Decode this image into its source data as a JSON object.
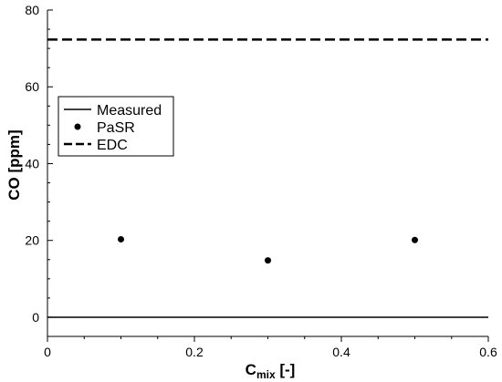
{
  "chart_data": {
    "type": "scatter",
    "xlim": [
      0,
      0.6
    ],
    "ylim": [
      -5,
      80
    ],
    "x_ticks": [
      0,
      0.2,
      0.4,
      0.6
    ],
    "x_tick_labels": [
      "0",
      "0.2",
      "0.4",
      "0.6"
    ],
    "y_ticks": [
      0,
      20,
      40,
      60,
      80
    ],
    "y_tick_labels": [
      "0",
      "20",
      "40",
      "60",
      "80"
    ],
    "xlabel": {
      "main": "C",
      "sub": "mix",
      "suffix": " [-]"
    },
    "ylabel": "CO [ppm]",
    "grid": false,
    "legend_position": "upper-left",
    "series": [
      {
        "name": "Measured",
        "style": "solid-line",
        "color": "#000000",
        "x": [
          0,
          0.6
        ],
        "y": [
          0,
          0
        ]
      },
      {
        "name": "PaSR",
        "style": "markers",
        "color": "#000000",
        "x": [
          0.1,
          0.3,
          0.5
        ],
        "y": [
          20.3,
          14.8,
          20.1
        ]
      },
      {
        "name": "EDC",
        "style": "dashed-line",
        "color": "#000000",
        "x": [
          0,
          0.6
        ],
        "y": [
          72.3,
          72.3
        ]
      }
    ]
  }
}
